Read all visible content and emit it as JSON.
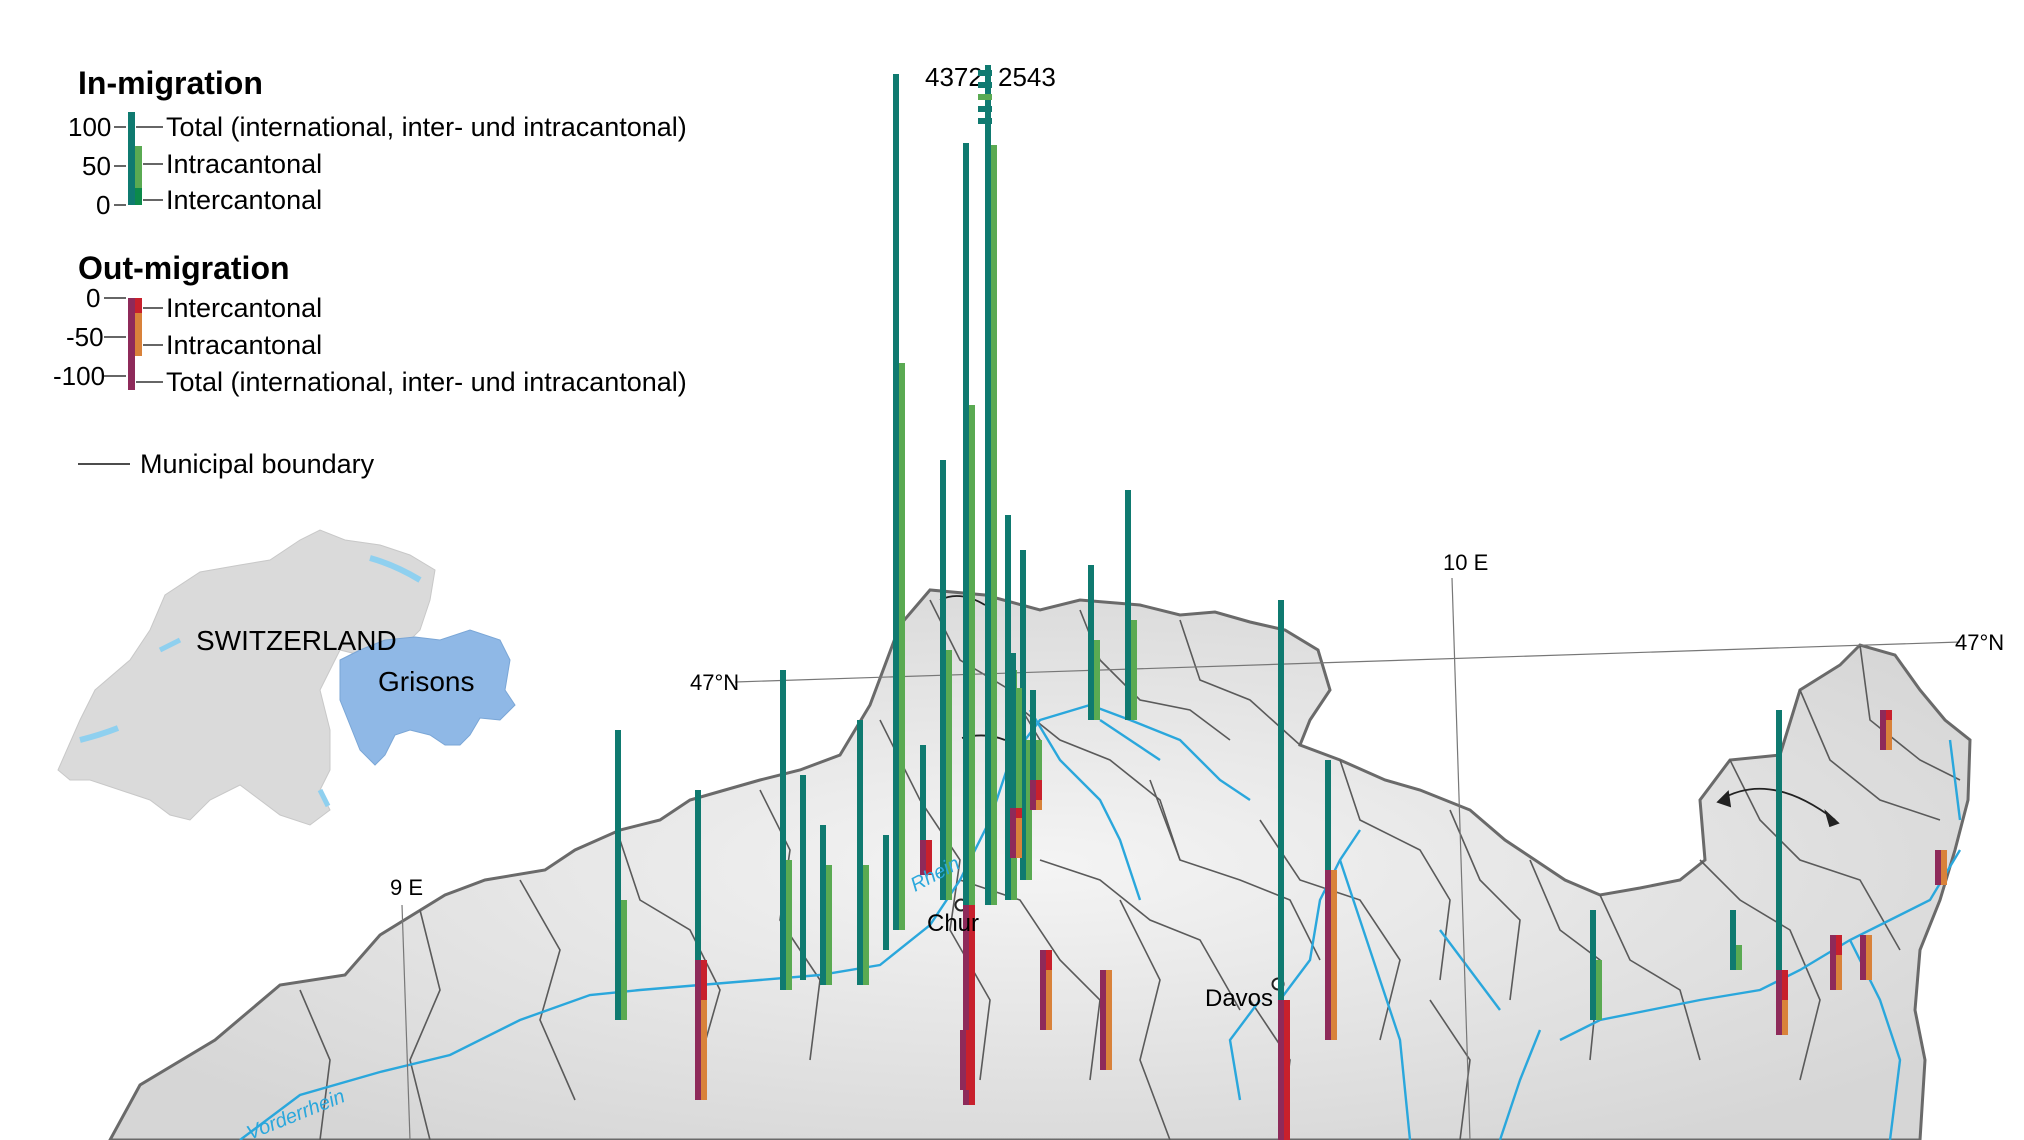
{
  "legend": {
    "in_title": "In-migration",
    "in_ticks": [
      "100",
      "50",
      "0"
    ],
    "in_total": "Total (international, inter- und intracantonal)",
    "in_intra": "Intracantonal",
    "in_inter": "Intercantonal",
    "out_title": "Out-migration",
    "out_ticks": [
      "0",
      "-50",
      "-100"
    ],
    "out_inter": "Intercantonal",
    "out_intra": "Intracantonal",
    "out_total": "Total (international, inter- und intracantonal)",
    "boundary": "Municipal boundary"
  },
  "inset": {
    "country": "SWITZERLAND",
    "canton": "Grisons"
  },
  "grid": {
    "lon_9": "9 E",
    "lon_10": "10 E",
    "lat_47_left": "47°N",
    "lat_47_right": "47°N"
  },
  "places": {
    "chur": "Chur",
    "davos": "Davos"
  },
  "rivers": {
    "rhein": "Rhein",
    "vorderrhein": "Vorderrhein"
  },
  "overflow": {
    "left_value": "4372",
    "right_value": "2543"
  },
  "colors": {
    "total_in": "#0f7a70",
    "intra_in": "#5aaa52",
    "inter_in": "#0c8a4a",
    "inter_out": "#c8202c",
    "intra_out": "#d9823a",
    "total_out": "#8e2a5a",
    "terrain": "#e9e9e9",
    "boundary": "#555555",
    "river": "#2aa7dc",
    "inset_land": "#dadada",
    "inset_canton": "#8fb8e6"
  }
}
